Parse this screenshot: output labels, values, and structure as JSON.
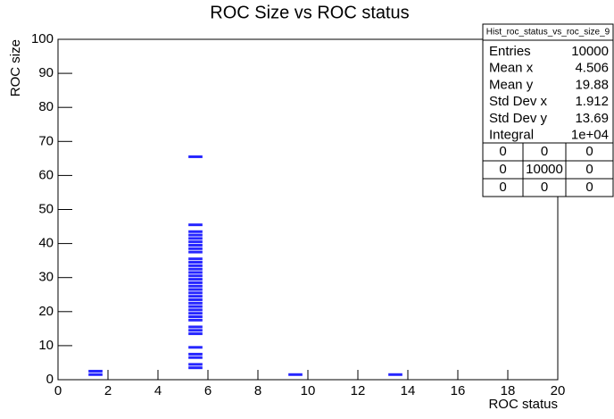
{
  "chart_data": {
    "type": "scatter",
    "title": "ROC Size vs ROC status",
    "x_label": "ROC status",
    "y_label": "ROC size",
    "xlim": [
      0,
      20
    ],
    "ylim": [
      0,
      100
    ],
    "xticks": [
      0,
      2,
      4,
      6,
      8,
      10,
      12,
      14,
      16,
      18,
      20
    ],
    "yticks": [
      0,
      10,
      20,
      30,
      40,
      50,
      60,
      70,
      80,
      90,
      100
    ],
    "color": "#0000ff",
    "x": [
      1.5,
      1.5,
      9.5,
      13.5,
      5.5,
      5.5,
      5.5,
      5.5,
      5.5,
      5.5,
      5.5,
      5.5,
      5.5,
      5.5,
      5.5,
      5.5,
      5.5,
      5.5,
      5.5,
      5.5,
      5.5,
      5.5,
      5.5,
      5.5,
      5.5,
      5.5,
      5.5,
      5.5,
      5.5,
      5.5,
      5.5,
      5.5,
      5.5,
      5.5,
      5.5,
      5.5,
      5.5,
      5.5,
      5.5,
      5.5
    ],
    "y": [
      1.5,
      2.5,
      1.5,
      1.5,
      3.5,
      4.5,
      6.5,
      7.5,
      9.5,
      13.5,
      14.5,
      15.5,
      17.5,
      18.5,
      19.5,
      20.5,
      21.5,
      22.5,
      23.5,
      24.5,
      25.5,
      26.5,
      27.5,
      28.5,
      29.5,
      30.5,
      31.5,
      32.5,
      33.5,
      34.5,
      35.5,
      37.5,
      38.5,
      39.5,
      40.5,
      41.5,
      42.5,
      43.5,
      45.5,
      65.5
    ],
    "stats": {
      "title": "Hist_roc_status_vs_roc_size_9",
      "rows": [
        [
          "Entries",
          "10000"
        ],
        [
          "Mean x",
          "4.506"
        ],
        [
          "Mean y",
          "19.88"
        ],
        [
          "Std Dev x",
          "1.912"
        ],
        [
          "Std Dev y",
          "13.69"
        ],
        [
          "Integral",
          "1e+04"
        ]
      ],
      "grid": [
        [
          "0",
          "0",
          "0"
        ],
        [
          "0",
          "10000",
          "0"
        ],
        [
          "0",
          "0",
          "0"
        ]
      ]
    }
  }
}
